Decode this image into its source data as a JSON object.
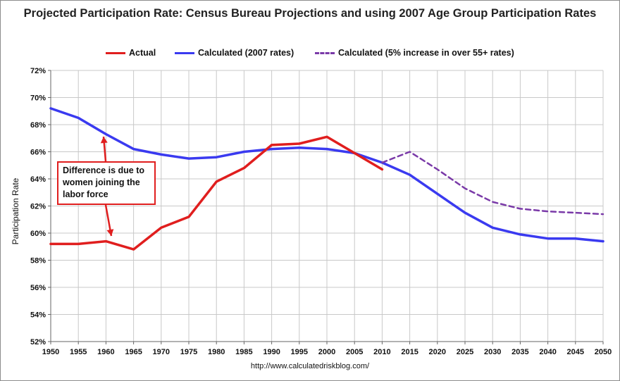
{
  "chart_data": {
    "type": "line",
    "title": "Projected Participation Rate: Census Bureau Projections and using 2007 Age Group Participation Rates",
    "ylabel": "Participation Rate",
    "xlabel": "",
    "ylim": [
      52,
      72
    ],
    "xlim": [
      1950,
      2050
    ],
    "grid": true,
    "legend": "top",
    "x_ticks": [
      "1950",
      "1955",
      "1960",
      "1965",
      "1970",
      "1975",
      "1980",
      "1985",
      "1990",
      "1995",
      "2000",
      "2005",
      "2010",
      "2015",
      "2020",
      "2025",
      "2030",
      "2035",
      "2040",
      "2045",
      "2050"
    ],
    "y_ticks": [
      "52%",
      "54%",
      "56%",
      "58%",
      "60%",
      "62%",
      "64%",
      "66%",
      "68%",
      "70%",
      "72%"
    ],
    "series": [
      {
        "name": "Actual",
        "color": "#e01e1e",
        "style": "solid",
        "x": [
          1950,
          1955,
          1960,
          1965,
          1970,
          1975,
          1980,
          1985,
          1990,
          1995,
          2000,
          2005,
          2010
        ],
        "values": [
          59.2,
          59.2,
          59.4,
          58.8,
          60.4,
          61.2,
          63.8,
          64.8,
          66.5,
          66.6,
          67.1,
          65.9,
          64.7
        ]
      },
      {
        "name": "Calculated (2007 rates)",
        "color": "#3a3af0",
        "style": "solid",
        "x": [
          1950,
          1955,
          1960,
          1965,
          1970,
          1975,
          1980,
          1985,
          1990,
          1995,
          2000,
          2005,
          2010,
          2015,
          2020,
          2025,
          2030,
          2035,
          2040,
          2045,
          2050
        ],
        "values": [
          69.2,
          68.5,
          67.3,
          66.2,
          65.8,
          65.5,
          65.6,
          66.0,
          66.2,
          66.3,
          66.2,
          65.9,
          65.2,
          64.3,
          62.9,
          61.5,
          60.4,
          59.9,
          59.6,
          59.6,
          59.4
        ]
      },
      {
        "name": "Calculated (5% increase in over 55+ rates)",
        "color": "#7a3aa8",
        "style": "dashed",
        "x": [
          2010,
          2015,
          2020,
          2025,
          2030,
          2035,
          2040,
          2045,
          2050
        ],
        "values": [
          65.2,
          66.0,
          64.7,
          63.3,
          62.3,
          61.8,
          61.6,
          61.5,
          61.4
        ]
      }
    ],
    "annotations": [
      {
        "text_lines": [
          "Difference is due to",
          "women joining the",
          "labor force"
        ]
      }
    ]
  },
  "source_url": "http://www.calculatedriskblog.com/"
}
